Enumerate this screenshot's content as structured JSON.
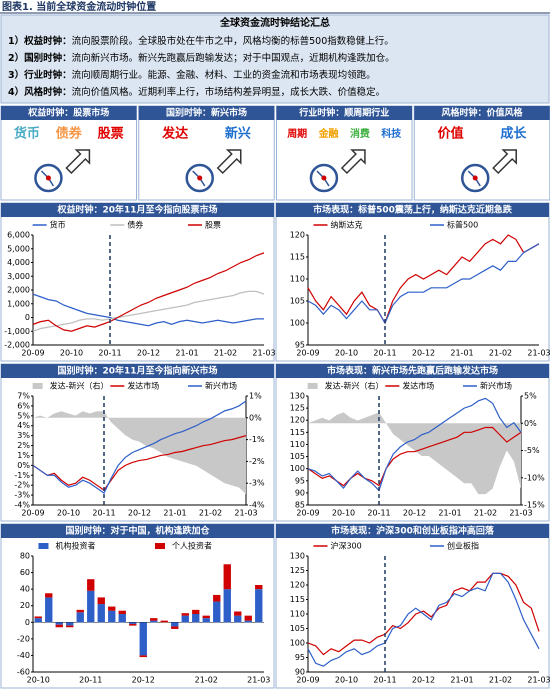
{
  "header": {
    "title": "图表1. 当前全球资金流动时钟位置"
  },
  "summary": {
    "title": "全球资金流时钟结论汇总",
    "items": [
      {
        "label": "1）权益时钟：",
        "text": "流向股票阶段。全球股市处在牛市之中，风格均衡的标普500指数稳健上行。"
      },
      {
        "label": "2）国别时钟：",
        "text": "流向新兴市场。新兴先跑赢后跑输发达；对于中国观点，近期机构逢跌加仓。"
      },
      {
        "label": "3）行业时钟：",
        "text": "流向顺周期行业。能源、金融、材料、工业的资金流和市场表现均领跑。"
      },
      {
        "label": "4）风格时钟：",
        "text": "流向价值风格。近期利率上行，市场结构差异明显，成长大跌、价值稳定。"
      }
    ]
  },
  "clocks": [
    {
      "title": "权益时钟：股票市场",
      "labels": [
        {
          "text": "货币",
          "color": "#4bacc6"
        },
        {
          "text": "债券",
          "color": "#f79646"
        },
        {
          "text": "股票",
          "color": "#e00000"
        }
      ]
    },
    {
      "title": "国别时钟：新兴市场",
      "labels": [
        {
          "text": "发达",
          "color": "#e00000"
        },
        {
          "text": "新兴",
          "color": "#1f6fd0"
        }
      ]
    },
    {
      "title": "行业时钟：顺周期行业",
      "labels": [
        {
          "text": "周期",
          "color": "#e00000"
        },
        {
          "text": "金融",
          "color": "#f0a000"
        },
        {
          "text": "消费",
          "color": "#40b040"
        },
        {
          "text": "科技",
          "color": "#1f6fd0"
        }
      ]
    },
    {
      "title": "风格时钟：价值风格",
      "labels": [
        {
          "text": "价值",
          "color": "#e00000"
        },
        {
          "text": "成长",
          "color": "#1f6fd0"
        }
      ]
    }
  ],
  "chart_data": [
    {
      "type": "line",
      "title": "权益时钟：20年11月至今指向股票市场",
      "vline": "20-11",
      "categories": [
        "20-09",
        null,
        null,
        null,
        null,
        "20-10",
        null,
        null,
        null,
        null,
        "20-11",
        null,
        null,
        null,
        null,
        "20-12",
        null,
        null,
        null,
        null,
        "21-01",
        null,
        null,
        null,
        null,
        "21-02",
        null,
        null,
        null,
        null,
        "21-03"
      ],
      "ylim": [
        -2000,
        6000
      ],
      "yticks": [
        {
          "value": -2000,
          "label": "-2,000"
        },
        {
          "value": -1000,
          "label": "-1,000"
        },
        0,
        {
          "value": 1000,
          "label": "1,000"
        },
        {
          "value": 2000,
          "label": "2,000"
        },
        {
          "value": 3000,
          "label": "3,000"
        },
        {
          "value": 4000,
          "label": "4,000"
        },
        {
          "value": 5000,
          "label": "5,000"
        },
        {
          "value": 6000,
          "label": "6,000"
        }
      ],
      "series": [
        {
          "name": "货币",
          "color": "#2e5fc9",
          "values": [
            1700,
            1500,
            1300,
            1200,
            900,
            700,
            500,
            300,
            200,
            100,
            0,
            -200,
            -300,
            -400,
            -500,
            -600,
            -400,
            -300,
            -500,
            -300,
            -200,
            -300,
            -400,
            -300,
            -200,
            -300,
            -400,
            -300,
            -200,
            -100,
            -100
          ]
        },
        {
          "name": "债券",
          "color": "#bfbfbf",
          "values": [
            -1000,
            -800,
            -700,
            -600,
            -500,
            -400,
            -200,
            -100,
            -100,
            -200,
            -100,
            0,
            100,
            200,
            300,
            400,
            500,
            600,
            700,
            800,
            900,
            1100,
            1200,
            1300,
            1400,
            1500,
            1600,
            1800,
            1900,
            1900,
            1700
          ]
        },
        {
          "name": "股票",
          "color": "#d00000",
          "values": [
            -500,
            -300,
            -200,
            -600,
            -900,
            -1000,
            -800,
            -600,
            -700,
            -500,
            -300,
            0,
            300,
            600,
            900,
            1100,
            1400,
            1600,
            1800,
            2000,
            2200,
            2500,
            2700,
            2900,
            3200,
            3400,
            3700,
            4000,
            4200,
            4500,
            4700
          ]
        }
      ]
    },
    {
      "type": "line",
      "title": "市场表现：标普500震荡上行，纳斯达克近期急跌",
      "vline": "20-11",
      "categories": [
        "20-09",
        null,
        null,
        null,
        null,
        "20-10",
        null,
        null,
        null,
        null,
        "20-11",
        null,
        null,
        null,
        null,
        "20-12",
        null,
        null,
        null,
        null,
        "21-01",
        null,
        null,
        null,
        null,
        "21-02",
        null,
        null,
        null,
        null,
        "21-03"
      ],
      "ylim": [
        95,
        120
      ],
      "yticks": [
        95,
        100,
        105,
        110,
        115,
        120
      ],
      "series": [
        {
          "name": "纳斯达克",
          "color": "#d00000",
          "values": [
            108,
            105,
            103,
            106,
            104,
            102,
            105,
            107,
            104,
            103,
            100,
            105,
            108,
            110,
            111,
            110,
            111,
            112,
            111,
            113,
            115,
            114,
            116,
            118,
            119,
            118,
            120,
            119,
            116,
            117,
            118
          ]
        },
        {
          "name": "标普500",
          "color": "#2e5fc9",
          "values": [
            105,
            104,
            102,
            104,
            103,
            101,
            103,
            105,
            103,
            103,
            100,
            104,
            106,
            107,
            107,
            107,
            108,
            108,
            108,
            109,
            110,
            110,
            111,
            112,
            113,
            112,
            114,
            114,
            116,
            117,
            118
          ]
        }
      ]
    },
    {
      "type": "line",
      "title": "国别时钟：20年11月至今指向新兴市场",
      "vline": "20-11",
      "categories": [
        "20-09",
        null,
        null,
        null,
        null,
        "20-10",
        null,
        null,
        null,
        null,
        "20-11",
        null,
        null,
        null,
        null,
        "20-12",
        null,
        null,
        null,
        null,
        "21-01",
        null,
        null,
        null,
        null,
        "21-02",
        null,
        null,
        null,
        null,
        "21-03"
      ],
      "ylim": [
        -4,
        7
      ],
      "yticks": [
        {
          "value": -4,
          "label": "-4%"
        },
        {
          "value": -3,
          "label": "-3%"
        },
        {
          "value": -2,
          "label": "-2%"
        },
        {
          "value": -1,
          "label": "-1%"
        },
        {
          "value": 0,
          "label": "0%"
        },
        {
          "value": 1,
          "label": "1%"
        },
        {
          "value": 2,
          "label": "2%"
        },
        {
          "value": 3,
          "label": "3%"
        },
        {
          "value": 4,
          "label": "4%"
        },
        {
          "value": 5,
          "label": "5%"
        },
        {
          "value": 6,
          "label": "6%"
        },
        {
          "value": 7,
          "label": "7%"
        }
      ],
      "y2lim": [
        -4,
        1
      ],
      "y2ticks": [
        {
          "value": -4,
          "label": "-4%"
        },
        {
          "value": -3,
          "label": "-3%"
        },
        {
          "value": -2,
          "label": "-2%"
        },
        {
          "value": -1,
          "label": "-1%"
        },
        {
          "value": 0,
          "label": "0%"
        },
        {
          "value": 1,
          "label": "1%"
        }
      ],
      "series": [
        {
          "name": "发达-新兴（右）",
          "type": "area",
          "axis": "y2",
          "color": "#c8c8c8",
          "values": [
            0,
            0.1,
            0,
            0.2,
            0.3,
            0.2,
            0.1,
            0.3,
            0.2,
            0.3,
            0.3,
            -0.2,
            -0.5,
            -0.8,
            -1.0,
            -1.1,
            -1.3,
            -1.4,
            -1.6,
            -1.8,
            -1.9,
            -2.0,
            -2.1,
            -2.2,
            -2.4,
            -2.6,
            -2.8,
            -3.0,
            -3.1,
            -3.2,
            -3.5
          ]
        },
        {
          "name": "发达市场",
          "color": "#d00000",
          "values": [
            0,
            -0.5,
            -1,
            -0.8,
            -1.5,
            -2,
            -1.8,
            -1.2,
            -1.5,
            -2,
            -2.5,
            -1.5,
            -0.5,
            0,
            0.3,
            0.5,
            0.6,
            0.8,
            1,
            1.1,
            1.3,
            1.4,
            1.6,
            1.8,
            2,
            2.1,
            2.3,
            2.5,
            2.6,
            2.8,
            3
          ]
        },
        {
          "name": "新兴市场",
          "color": "#2e5fc9",
          "values": [
            0,
            -0.5,
            -1,
            -1,
            -1.7,
            -2.2,
            -2,
            -1.5,
            -1.8,
            -2.3,
            -2.8,
            -1.3,
            0,
            0.8,
            1.3,
            1.6,
            1.9,
            2.2,
            2.6,
            2.9,
            3.2,
            3.4,
            3.7,
            4,
            4.4,
            4.7,
            5.1,
            5.5,
            5.7,
            6,
            6.5
          ]
        }
      ]
    },
    {
      "type": "line",
      "title": "市场表现：新兴市场先跑赢后跑输发达市场",
      "vline": "20-11",
      "categories": [
        "20-09",
        null,
        null,
        null,
        null,
        "20-10",
        null,
        null,
        null,
        null,
        "20-11",
        null,
        null,
        null,
        null,
        "20-12",
        null,
        null,
        null,
        null,
        "21-01",
        null,
        null,
        null,
        null,
        "21-02",
        null,
        null,
        null,
        null,
        "21-03"
      ],
      "ylim": [
        85,
        130
      ],
      "yticks": [
        85,
        90,
        95,
        100,
        105,
        110,
        115,
        120,
        125,
        130
      ],
      "y2lim": [
        -15,
        5
      ],
      "y2ticks": [
        {
          "value": -15,
          "label": "-15%"
        },
        {
          "value": -10,
          "label": "-10%"
        },
        {
          "value": -5,
          "label": "-5%"
        },
        {
          "value": 0,
          "label": "0%"
        },
        {
          "value": 5,
          "label": "5%"
        }
      ],
      "series": [
        {
          "name": "发达-新兴（右）",
          "type": "area",
          "axis": "y2",
          "color": "#c8c8c8",
          "values": [
            0,
            0.5,
            1,
            0.5,
            1.5,
            2,
            1,
            0.5,
            1,
            1.5,
            2,
            0,
            -2,
            -3,
            -4,
            -5,
            -6,
            -6,
            -7,
            -8,
            -9,
            -10,
            -11,
            -11,
            -13,
            -13,
            -12,
            -8,
            -5,
            -7,
            -12
          ]
        },
        {
          "name": "发达市场",
          "color": "#d00000",
          "values": [
            100,
            98,
            96,
            97,
            95,
            93,
            96,
            98,
            96,
            95,
            93,
            100,
            104,
            106,
            107,
            107,
            108,
            109,
            110,
            111,
            112,
            113,
            115,
            115,
            116,
            117,
            117,
            114,
            111,
            113,
            115
          ]
        },
        {
          "name": "新兴市场",
          "color": "#2e5fc9",
          "values": [
            100,
            99,
            97,
            98,
            95,
            92,
            96,
            99,
            96,
            94,
            91,
            100,
            106,
            109,
            111,
            112,
            114,
            115,
            117,
            119,
            121,
            123,
            125,
            126,
            128,
            129,
            127,
            121,
            117,
            119,
            115
          ]
        }
      ]
    },
    {
      "type": "bar",
      "title": "国别时钟：对于中国，机构逢跌加仓",
      "categories": [
        "20-10",
        null,
        null,
        null,
        null,
        "20-11",
        null,
        null,
        null,
        null,
        "20-12",
        null,
        null,
        null,
        null,
        null,
        "21-02",
        null,
        null,
        null,
        null,
        "21-03"
      ],
      "ylim": [
        -60,
        80
      ],
      "yticks": [
        -60,
        -40,
        -20,
        0,
        20,
        40,
        60,
        80
      ],
      "series": [
        {
          "name": "机构投资者",
          "color": "#2e5fc9",
          "values": [
            5,
            30,
            -3,
            -4,
            12,
            38,
            22,
            14,
            10,
            -2,
            -40,
            2,
            0,
            -5,
            8,
            10,
            5,
            25,
            40,
            8,
            2,
            40
          ]
        },
        {
          "name": "个人投资者",
          "color": "#d00000",
          "values": [
            2,
            5,
            -3,
            -2,
            3,
            14,
            8,
            5,
            4,
            -2,
            -2,
            3,
            2,
            -3,
            3,
            5,
            3,
            8,
            30,
            5,
            6,
            5
          ]
        }
      ]
    },
    {
      "type": "line",
      "title": "市场表现：沪深300和创业板指冲高回落",
      "vline": "20-11",
      "categories": [
        "20-09",
        null,
        null,
        null,
        null,
        "20-10",
        null,
        null,
        null,
        null,
        "20-11",
        null,
        null,
        null,
        null,
        "20-12",
        null,
        null,
        null,
        null,
        "21-01",
        null,
        null,
        null,
        null,
        "21-02",
        null,
        null,
        null,
        null,
        "21-03"
      ],
      "ylim": [
        90,
        130
      ],
      "yticks": [
        90,
        95,
        100,
        105,
        110,
        115,
        120,
        125,
        130
      ],
      "series": [
        {
          "name": "沪深300",
          "color": "#d00000",
          "values": [
            100,
            99,
            96,
            98,
            97,
            99,
            101,
            101,
            100,
            102,
            103,
            106,
            105,
            107,
            110,
            111,
            109,
            112,
            113,
            118,
            119,
            118,
            121,
            121,
            124,
            124,
            123,
            120,
            114,
            112,
            104
          ]
        },
        {
          "name": "创业板指",
          "color": "#2e5fc9",
          "values": [
            98,
            93,
            92,
            94,
            95,
            97,
            98,
            96,
            97,
            99,
            100,
            105,
            106,
            110,
            112,
            110,
            108,
            113,
            114,
            117,
            116,
            118,
            119,
            118,
            124,
            124,
            121,
            115,
            108,
            103,
            98
          ]
        }
      ]
    }
  ]
}
